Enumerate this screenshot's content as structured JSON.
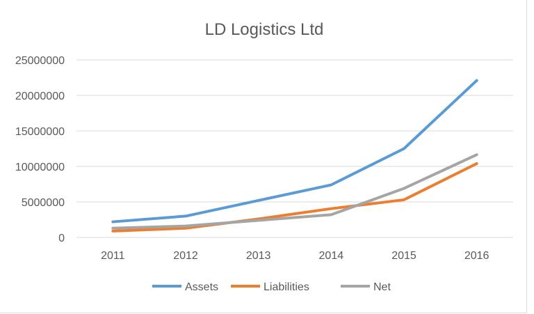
{
  "chart_data": {
    "type": "line",
    "title": "LD Logistics Ltd",
    "xlabel": "",
    "ylabel": "",
    "categories": [
      "2011",
      "2012",
      "2013",
      "2014",
      "2015",
      "2016"
    ],
    "yticks": [
      "0",
      "5000000",
      "10000000",
      "15000000",
      "20000000",
      "25000000"
    ],
    "ylim": [
      0,
      25000000
    ],
    "grid": true,
    "legend": "bottom",
    "series": [
      {
        "name": "Assets",
        "color": "#5b9bd5",
        "values": [
          2200000,
          3000000,
          5200000,
          7400000,
          12500000,
          22100000
        ]
      },
      {
        "name": "Liabilities",
        "color": "#ed7d31",
        "values": [
          900000,
          1300000,
          2600000,
          4050000,
          5300000,
          10400000
        ]
      },
      {
        "name": "Net",
        "color": "#a5a5a5",
        "values": [
          1300000,
          1600000,
          2400000,
          3200000,
          6900000,
          11650000
        ]
      }
    ]
  }
}
